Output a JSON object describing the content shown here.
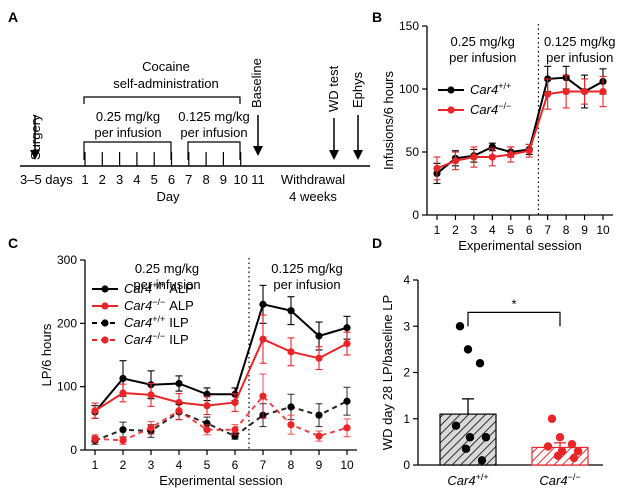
{
  "colors": {
    "wt": "#000000",
    "ko": "#e8262a",
    "ko_light": "#f08080"
  },
  "panel_a": {
    "letter": "A",
    "surgery": "Surgery",
    "cocaine": "Cocaine",
    "self_admin": "self-administration",
    "baseline": "Baseline",
    "wd_test": "WD test",
    "ephys": "Ephys",
    "dose_high_1": "0.25 mg/kg",
    "dose_high_2": "per infusion",
    "dose_low_1": "0.125 mg/kg",
    "dose_low_2": "per infusion",
    "days_before": "3–5 days",
    "day_numbers": [
      "1",
      "2",
      "3",
      "4",
      "5",
      "6",
      "7",
      "8",
      "9",
      "10",
      "11"
    ],
    "day_label": "Day",
    "withdrawal_1": "Withdrawal",
    "withdrawal_2": "4 weeks"
  },
  "chart_data": [
    {
      "id": "B",
      "type": "line",
      "title": "",
      "xlabel": "Experimental session",
      "ylabel": "Infusions/6 hours",
      "categories": [
        1,
        2,
        3,
        4,
        5,
        6,
        7,
        8,
        9,
        10
      ],
      "ylim": [
        0,
        150
      ],
      "yticks": [
        0,
        50,
        100,
        150
      ],
      "annotations": [
        "0.25 mg/kg",
        "per infusion",
        "0.125 mg/kg",
        "per infusion"
      ],
      "series": [
        {
          "name": "Car4+/+",
          "genotype": "Car4",
          "sup": "+/+",
          "color": "#000000",
          "dash": false,
          "values": [
            33,
            45,
            47,
            54,
            50,
            52,
            108,
            109,
            98,
            106
          ],
          "errors": [
            8,
            6,
            5,
            3,
            4,
            4,
            10,
            9,
            13,
            10
          ]
        },
        {
          "name": "Car4−/−",
          "genotype": "Car4",
          "sup": "−/−",
          "color": "#e8262a",
          "dash": false,
          "values": [
            37,
            43,
            46,
            46,
            48,
            51,
            96,
            98,
            98,
            98
          ],
          "errors": [
            9,
            7,
            8,
            7,
            6,
            5,
            12,
            13,
            10,
            12
          ]
        }
      ]
    },
    {
      "id": "C",
      "type": "line",
      "title": "",
      "xlabel": "Experimental session",
      "ylabel": "LP/6 hours",
      "categories": [
        1,
        2,
        3,
        4,
        5,
        6,
        7,
        8,
        9,
        10
      ],
      "ylim": [
        0,
        300
      ],
      "yticks": [
        0,
        100,
        200,
        300
      ],
      "annotations": [
        "0.25 mg/kg",
        "per infusion",
        "0.125 mg/kg",
        "per infusion"
      ],
      "series": [
        {
          "name": "Car4+/+ ALP",
          "genotype": "Car4",
          "sup": "+/+",
          "suffix": "ALP",
          "color": "#000000",
          "dash": false,
          "values": [
            60,
            113,
            103,
            105,
            88,
            88,
            230,
            220,
            180,
            193
          ],
          "errors": [
            10,
            28,
            22,
            12,
            10,
            10,
            30,
            22,
            22,
            18
          ]
        },
        {
          "name": "Car4−/− ALP",
          "genotype": "Car4",
          "sup": "−/−",
          "suffix": "ALP",
          "color": "#e8262a",
          "dash": false,
          "values": [
            62,
            90,
            87,
            75,
            70,
            75,
            175,
            155,
            145,
            168
          ],
          "errors": [
            12,
            14,
            18,
            14,
            14,
            14,
            38,
            22,
            18,
            18
          ]
        },
        {
          "name": "Car4+/+ ILP",
          "genotype": "Car4",
          "sup": "+/+",
          "suffix": "ILP",
          "color": "#000000",
          "dash": true,
          "values": [
            15,
            32,
            30,
            60,
            42,
            22,
            55,
            68,
            55,
            77
          ],
          "errors": [
            6,
            12,
            10,
            12,
            10,
            5,
            18,
            20,
            18,
            22
          ]
        },
        {
          "name": "Car4−/− ILP",
          "genotype": "Car4",
          "sup": "−/−",
          "suffix": "ILP",
          "color": "#e8262a",
          "dash": true,
          "values": [
            18,
            15,
            35,
            62,
            32,
            32,
            85,
            40,
            22,
            35
          ],
          "errors": [
            6,
            6,
            10,
            14,
            8,
            8,
            35,
            15,
            8,
            14
          ]
        }
      ]
    },
    {
      "id": "D",
      "type": "bar",
      "title": "",
      "xlabel": "",
      "ylabel": "WD day 28 LP/baseline LP",
      "ylim": [
        0,
        4
      ],
      "yticks": [
        0,
        1,
        2,
        3,
        4
      ],
      "significance": "*",
      "bars": [
        {
          "name": "Car4+/+",
          "genotype": "Car4",
          "sup": "+/+",
          "color": "#000000",
          "mean": 1.1,
          "sem": 0.33,
          "points": [
            3.0,
            2.5,
            2.2,
            0.85,
            0.6,
            0.6,
            0.35,
            0.1
          ]
        },
        {
          "name": "Car4−/−",
          "genotype": "Car4",
          "sup": "−/−",
          "color": "#e8262a",
          "mean": 0.38,
          "sem": 0.1,
          "points": [
            1.0,
            0.6,
            0.45,
            0.4,
            0.3,
            0.3,
            0.2,
            0.15
          ]
        }
      ]
    }
  ]
}
